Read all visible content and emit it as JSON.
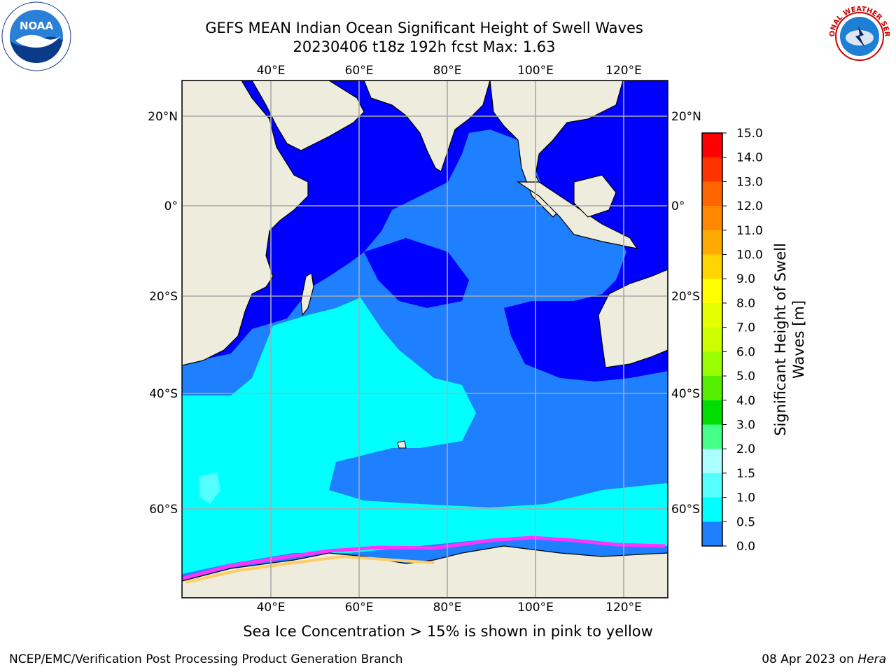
{
  "title": {
    "line1": "GEFS MEAN Indian Ocean Significant Height of Swell Waves",
    "line2": "20230406 t18z 192h fcst   Max: 1.63"
  },
  "map": {
    "lon_labels": [
      "40°E",
      "60°E",
      "80°E",
      "100°E",
      "120°E"
    ],
    "lat_labels": [
      "20°N",
      "0°",
      "20°S",
      "40°S",
      "60°S"
    ],
    "land_color": "#eeecdc",
    "ocean_colors": {
      "0.0-0.5": "#0000ff",
      "0.5-1.0": "#1e7fff",
      "1.0-1.5": "#00ffff",
      "1.5-2.0": "#55ffff"
    },
    "sea_ice_colors": [
      "#ff33ff",
      "#ff9900",
      "#ffcc66"
    ]
  },
  "colorbar": {
    "title_line1": "Significant Height of Swell",
    "title_line2": "Waves [m]",
    "ticks": [
      "15.0",
      "14.0",
      "13.0",
      "12.0",
      "11.0",
      "10.0",
      "9.0",
      "8.0",
      "7.0",
      "6.0",
      "5.0",
      "4.0",
      "3.0",
      "2.0",
      "1.5",
      "1.0",
      "0.5",
      "0.0"
    ],
    "colors": [
      "#ff0000",
      "#ff3300",
      "#ff6600",
      "#ff8800",
      "#ffaa00",
      "#ffd400",
      "#ffff00",
      "#e6ff00",
      "#ccff00",
      "#99ff00",
      "#55ee00",
      "#00dd00",
      "#44ff88",
      "#aaffff",
      "#55ffff",
      "#00ffff",
      "#1e7fff",
      "#0000ff"
    ]
  },
  "caption": "Sea Ice Concentration > 15% is shown in pink to yellow",
  "footer": {
    "left": "NCEP/EMC/Verification Post Processing Product Generation Branch",
    "right_date": "08 Apr 2023 on",
    "right_host": "Hera"
  },
  "logos": {
    "noaa_text": "NOAA",
    "nws_text": "NATIONAL WEATHER SERVICE"
  }
}
